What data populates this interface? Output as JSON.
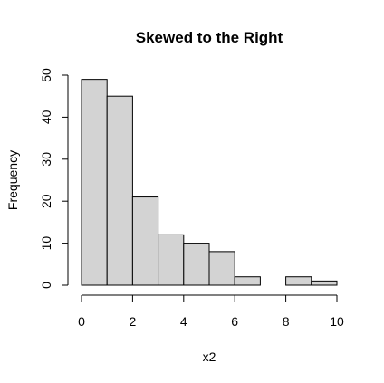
{
  "chart_data": {
    "type": "bar",
    "title": "Skewed to the Right",
    "xlabel": "x2",
    "ylabel": "Frequency",
    "bins": [
      {
        "start": 0,
        "end": 1,
        "count": 49
      },
      {
        "start": 1,
        "end": 2,
        "count": 45
      },
      {
        "start": 2,
        "end": 3,
        "count": 21
      },
      {
        "start": 3,
        "end": 4,
        "count": 12
      },
      {
        "start": 4,
        "end": 5,
        "count": 10
      },
      {
        "start": 5,
        "end": 6,
        "count": 8
      },
      {
        "start": 6,
        "end": 7,
        "count": 2
      },
      {
        "start": 7,
        "end": 8,
        "count": 0
      },
      {
        "start": 8,
        "end": 9,
        "count": 2
      },
      {
        "start": 9,
        "end": 10,
        "count": 1
      }
    ],
    "xlim": [
      0,
      10
    ],
    "ylim": [
      0,
      50
    ],
    "xticks": [
      "0",
      "2",
      "4",
      "6",
      "8",
      "10"
    ],
    "yticks": [
      "0",
      "10",
      "20",
      "30",
      "40",
      "50"
    ],
    "grid": false,
    "colors": {
      "bar_fill": "#d3d3d3",
      "bar_stroke": "#000000"
    }
  }
}
